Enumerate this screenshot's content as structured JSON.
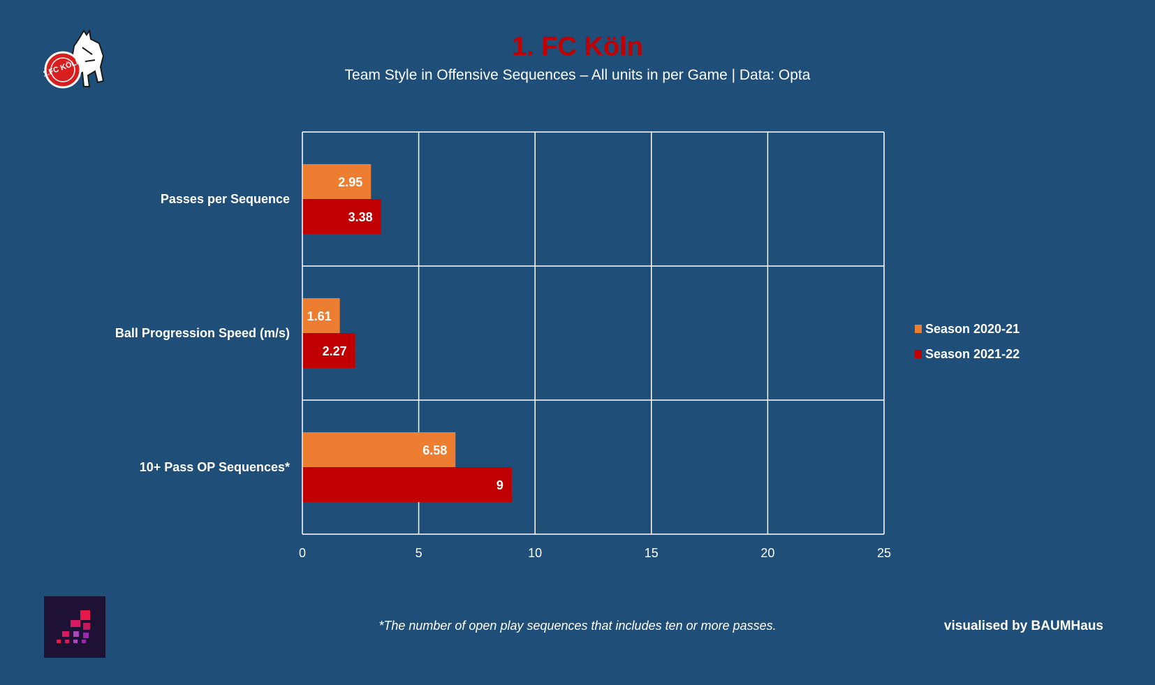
{
  "header": {
    "title": "1. FC Köln",
    "subtitle": "Team Style in Offensive Sequences – All units in per Game  |  Data: Opta"
  },
  "logos": {
    "club_icon": "fc-koeln-goat-crest-icon",
    "club_crest_text": "1.FC KÖLN",
    "brand_icon": "baumhaus-staircase-logo-icon"
  },
  "footer": {
    "footnote": "*The number of open play sequences that includes ten or more passes.",
    "credit": "visualised by BAUMHaus"
  },
  "colors": {
    "background": "#1f4e79",
    "season_2020_21": "#ed7d31",
    "season_2021_22": "#c00000",
    "title": "#c00000"
  },
  "chart_data": {
    "type": "bar",
    "orientation": "horizontal",
    "categories": [
      "Passes per Sequence",
      "Ball Progression Speed (m/s)",
      "10+ Pass OP Sequences*"
    ],
    "series": [
      {
        "name": "Season 2020-21",
        "values": [
          2.95,
          1.61,
          6.58
        ],
        "labels": [
          "2.95",
          "1.61",
          "6.58"
        ]
      },
      {
        "name": "Season 2021-22",
        "values": [
          3.38,
          2.27,
          9
        ],
        "labels": [
          "3.38",
          "2.27",
          "9"
        ]
      }
    ],
    "xlim": [
      0,
      25
    ],
    "xticks": [
      0,
      5,
      10,
      15,
      20,
      25
    ],
    "grid": true,
    "legend_position": "right"
  }
}
